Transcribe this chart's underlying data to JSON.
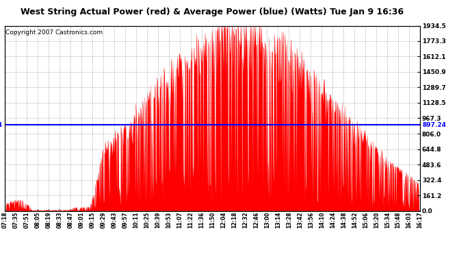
{
  "title": "West String Actual Power (red) & Average Power (blue) (Watts) Tue Jan 9 16:36",
  "copyright": "Copyright 2007 Castronics.com",
  "avg_power": 897.24,
  "y_max": 1934.5,
  "y_min": 0.0,
  "y_ticks": [
    0.0,
    161.2,
    322.4,
    483.6,
    644.8,
    806.0,
    967.3,
    1128.5,
    1289.7,
    1450.9,
    1612.1,
    1773.3,
    1934.5
  ],
  "background_color": "#ffffff",
  "fill_color": "#ff0000",
  "line_color": "#0000ff",
  "title_fontsize": 9,
  "copyright_fontsize": 6.5,
  "x_tick_labels": [
    "07:18",
    "07:35",
    "07:51",
    "08:05",
    "08:19",
    "08:33",
    "08:47",
    "09:01",
    "09:15",
    "09:29",
    "09:43",
    "09:57",
    "10:11",
    "10:25",
    "10:39",
    "10:53",
    "11:07",
    "11:22",
    "11:36",
    "11:50",
    "12:04",
    "12:18",
    "12:32",
    "12:46",
    "13:00",
    "13:14",
    "13:28",
    "13:42",
    "13:56",
    "14:10",
    "14:24",
    "14:38",
    "14:52",
    "15:06",
    "15:20",
    "15:34",
    "15:48",
    "16:03",
    "16:17"
  ],
  "n_fine": 780
}
